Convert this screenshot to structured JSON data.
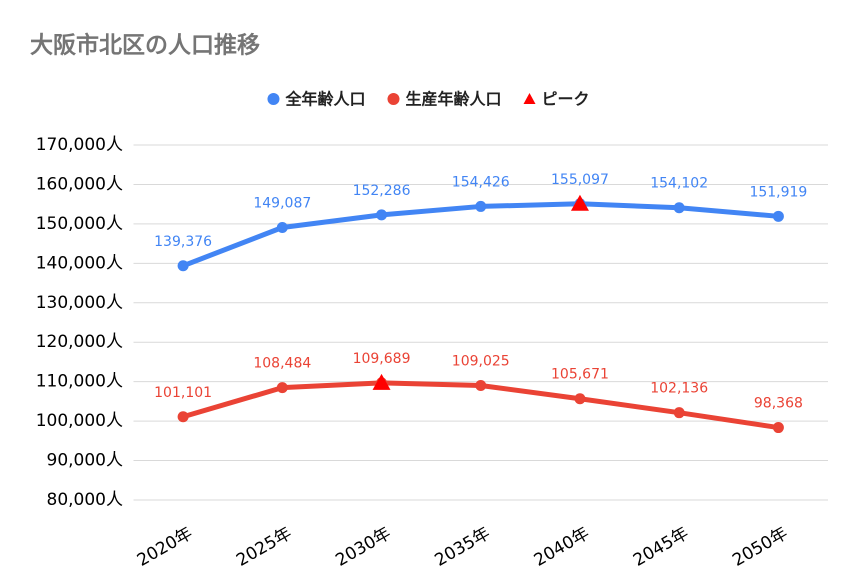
{
  "chart_data": {
    "type": "line",
    "title": "大阪市北区の人口推移",
    "categories": [
      "2020年",
      "2025年",
      "2030年",
      "2035年",
      "2040年",
      "2045年",
      "2050年"
    ],
    "series": [
      {
        "name": "全年齢人口",
        "color": "#4285f4",
        "marker": "circle",
        "line": true,
        "values": [
          139376,
          149087,
          152286,
          154426,
          155097,
          154102,
          151919
        ],
        "value_labels": [
          "139,376",
          "149,087",
          "152,286",
          "154,426",
          "155,097",
          "154,102",
          "151,919"
        ]
      },
      {
        "name": "生産年齢人口",
        "color": "#ea4335",
        "marker": "circle",
        "line": true,
        "values": [
          101101,
          108484,
          109689,
          109025,
          105671,
          102136,
          98368
        ],
        "value_labels": [
          "101,101",
          "108,484",
          "109,689",
          "109,025",
          "105,671",
          "102,136",
          "98,368"
        ]
      },
      {
        "name": "ピーク",
        "color": "#ff0000",
        "marker": "triangle",
        "line": false,
        "values": [
          null,
          null,
          109689,
          null,
          155097,
          null,
          null
        ]
      }
    ],
    "ylim": [
      80000,
      170000
    ],
    "yticks": [
      {
        "value": 80000,
        "label": "80,000人"
      },
      {
        "value": 90000,
        "label": "90,000人"
      },
      {
        "value": 100000,
        "label": "100,000人"
      },
      {
        "value": 110000,
        "label": "110,000人"
      },
      {
        "value": 120000,
        "label": "120,000人"
      },
      {
        "value": 130000,
        "label": "130,000人"
      },
      {
        "value": 140000,
        "label": "140,000人"
      },
      {
        "value": 150000,
        "label": "150,000人"
      },
      {
        "value": 160000,
        "label": "160,000人"
      },
      {
        "value": 170000,
        "label": "170,000人"
      }
    ],
    "grid": true,
    "legend": "top"
  }
}
